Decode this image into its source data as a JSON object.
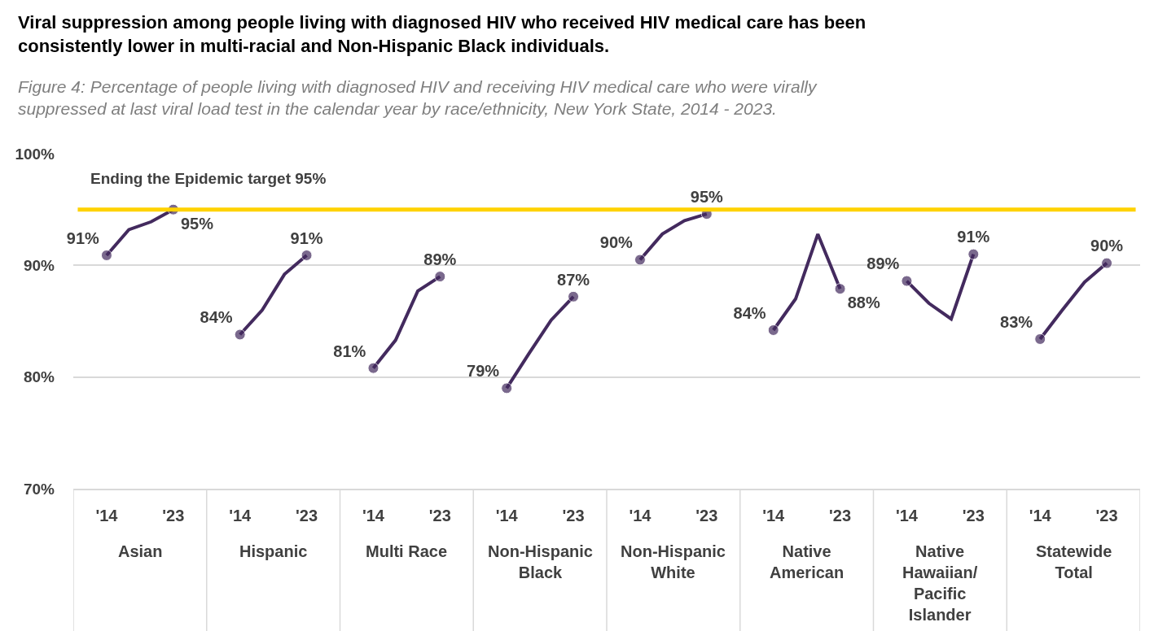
{
  "chart_data": {
    "type": "line",
    "title": "Viral suppression among people living with diagnosed HIV who received HIV medical care has been consistently lower in multi-racial and Non-Hispanic Black individuals.",
    "subtitle": "Figure 4: Percentage of people living with diagnosed HIV and receiving HIV medical care who were virally suppressed at last viral load test in the calendar year by race/ethnicity, New York State, 2014 - 2023.",
    "categories": [
      null,
      "'14",
      null,
      null,
      "'23",
      null,
      null,
      "'14",
      null,
      null,
      "'23",
      null,
      null,
      "'14",
      null,
      null,
      "'23",
      null,
      null,
      "'14",
      null,
      null,
      "'23",
      null,
      null,
      "'14",
      null,
      null,
      "'23",
      null,
      null,
      "'14",
      null,
      null,
      "'23",
      null,
      null,
      "'14",
      null,
      null,
      "'23",
      null,
      null,
      "'14",
      null,
      null,
      "'23",
      null
    ],
    "series": [
      {
        "color": "#432a5e",
        "values": [
          null,
          90.9,
          93.2,
          93.9,
          95.0,
          null,
          null,
          83.8,
          86.0,
          89.2,
          90.9,
          null,
          null,
          80.8,
          83.3,
          87.7,
          89.0,
          null,
          null,
          79.0,
          82.1,
          85.1,
          87.2,
          null,
          null,
          90.5,
          92.8,
          94.0,
          94.6,
          null,
          null,
          84.2,
          87.0,
          92.8,
          87.9,
          null,
          null,
          88.6,
          86.6,
          85.2,
          91.0,
          null,
          null,
          83.4,
          86.0,
          88.5,
          90.2,
          null
        ],
        "value_labels": [
          null,
          "91%",
          null,
          null,
          "95%",
          null,
          null,
          "84%",
          null,
          null,
          "91%",
          null,
          null,
          "81%",
          null,
          null,
          "89%",
          null,
          null,
          "79%",
          null,
          null,
          "87%",
          null,
          null,
          "90%",
          null,
          null,
          "95%",
          null,
          null,
          "84%",
          null,
          null,
          "88%",
          null,
          null,
          "89%",
          null,
          null,
          "91%",
          null,
          null,
          "83%",
          null,
          null,
          "90%",
          null
        ]
      }
    ],
    "ylim": [
      70,
      100
    ],
    "yticks": [
      {
        "value": 70,
        "label": "70%"
      },
      {
        "value": 80,
        "label": "80%"
      },
      {
        "value": 90,
        "label": "90%"
      },
      {
        "value": 100,
        "label": "100%"
      }
    ],
    "ref_lines": [
      {
        "axis": "y",
        "value": 95,
        "label": "Ending the Epidemic target 95%",
        "color": "#ffd200"
      }
    ],
    "annotations": [
      "Asian",
      "Hispanic",
      "Multi Race",
      "Non-Hispanic Black",
      "Non-Hispanic White",
      "Native American",
      "Native Hawaiian/Pacific Islander",
      "Statewide Total"
    ],
    "grid": "y",
    "marker": "circle",
    "line_style": "solid"
  }
}
